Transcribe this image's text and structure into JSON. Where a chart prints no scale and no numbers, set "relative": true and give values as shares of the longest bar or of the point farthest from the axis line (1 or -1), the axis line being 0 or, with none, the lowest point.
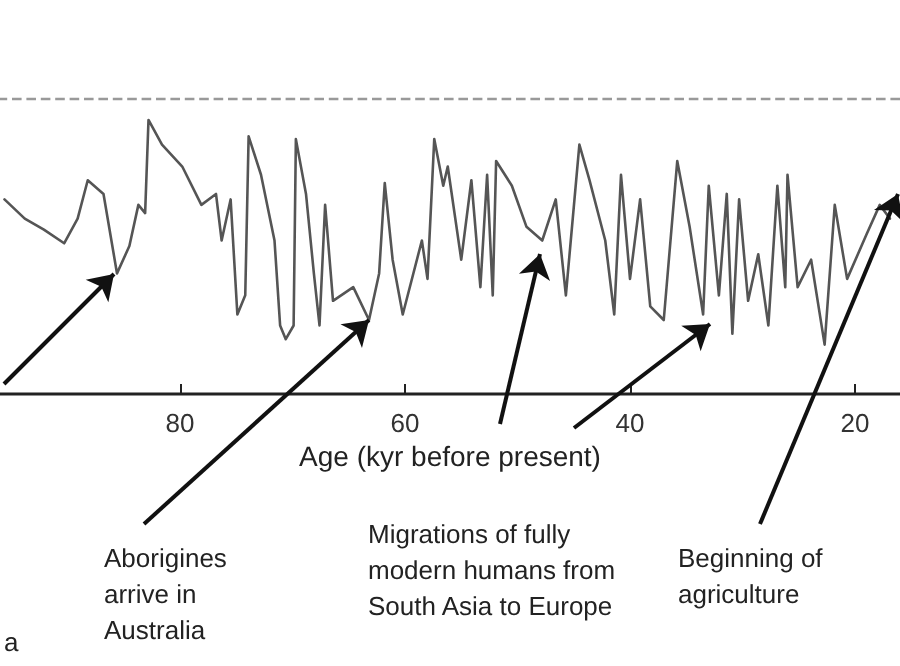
{
  "chart_data": {
    "type": "line",
    "relative": true,
    "xlabel": "Age (kyr before present)",
    "xlim": [
      96,
      16
    ],
    "xticks": [
      80,
      60,
      40,
      20
    ],
    "grid": false,
    "marker": "none",
    "line_style": "solid",
    "ref_lines": [
      {
        "axis": "y",
        "value": 1.08,
        "color": "#999999",
        "line_style": "dashed"
      }
    ],
    "annotations": [
      "a",
      {
        "text": "Aborigines arrive in Australia",
        "x": 63.2,
        "y": 0.27
      },
      "Migrations of fully modern humans from South Asia to Europe",
      "Beginning of agriculture"
    ],
    "series": [
      {
        "color": "#555555",
        "x": [
          95.6,
          93.8,
          92.1,
          90.3,
          89.1,
          88.2,
          86.8,
          85.6,
          84.5,
          83.7,
          83.1,
          82.8,
          81.6,
          79.8,
          78.1,
          76.8,
          76.3,
          75.5,
          74.9,
          74.2,
          73.9,
          72.8,
          71.6,
          71.1,
          70.6,
          69.9,
          69.7,
          68.8,
          68.1,
          67.6,
          67.1,
          66.4,
          64.6,
          63.2,
          62.3,
          61.8,
          61.1,
          60.2,
          58.5,
          58.0,
          57.4,
          56.6,
          56.2,
          55.0,
          54.1,
          53.3,
          52.7,
          52.2,
          51.9,
          50.5,
          49.2,
          47.8,
          46.6,
          45.7,
          44.5,
          43.6,
          42.2,
          41.4,
          40.8,
          40.0,
          39.1,
          38.2,
          37.0,
          35.8,
          34.7,
          33.5,
          33.0,
          32.1,
          31.4,
          30.9,
          30.3,
          29.5,
          28.6,
          27.7,
          26.9,
          26.2,
          26.0,
          25.1,
          23.9,
          22.7,
          21.8,
          20.7,
          19.0,
          17.8,
          16.9
        ],
        "values": [
          0.71,
          0.64,
          0.6,
          0.55,
          0.64,
          0.78,
          0.73,
          0.44,
          0.54,
          0.69,
          0.66,
          1.0,
          0.91,
          0.83,
          0.69,
          0.73,
          0.56,
          0.71,
          0.29,
          0.36,
          0.94,
          0.8,
          0.56,
          0.25,
          0.2,
          0.25,
          0.93,
          0.73,
          0.44,
          0.25,
          0.69,
          0.34,
          0.39,
          0.27,
          0.44,
          0.77,
          0.49,
          0.29,
          0.56,
          0.42,
          0.93,
          0.76,
          0.83,
          0.49,
          0.78,
          0.39,
          0.8,
          0.36,
          0.85,
          0.76,
          0.61,
          0.56,
          0.71,
          0.36,
          0.91,
          0.78,
          0.56,
          0.29,
          0.8,
          0.42,
          0.71,
          0.32,
          0.27,
          0.85,
          0.61,
          0.29,
          0.76,
          0.36,
          0.73,
          0.22,
          0.71,
          0.34,
          0.51,
          0.25,
          0.76,
          0.39,
          0.8,
          0.39,
          0.49,
          0.18,
          0.69,
          0.42,
          0.58,
          0.69,
          0.64
        ]
      }
    ]
  }
}
